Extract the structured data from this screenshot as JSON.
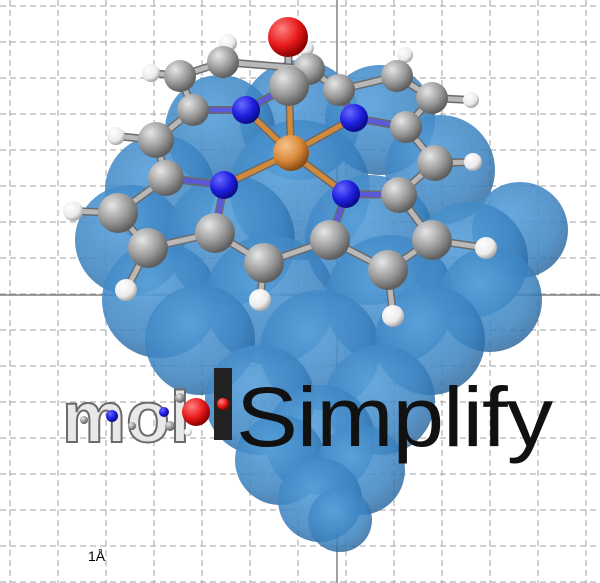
{
  "scale_bar": {
    "label": "1Å"
  },
  "logo": {
    "prefix": "mol",
    "name": "Simplify"
  },
  "colors": {
    "background": "#ffffff",
    "grid": "#a0a0a0",
    "surface": "#3a82c0",
    "carbon": "#8f8f8f",
    "hydrogen": "#f2f2f2",
    "nitrogen": "#2020e0",
    "oxygen": "#e61a1a",
    "metal": "#d98a3a"
  },
  "atom_icons": [
    "oxygen-atom-icon",
    "metal-atom-icon",
    "nitrogen-atom-icon",
    "carbon-atom-icon",
    "hydrogen-atom-icon"
  ]
}
